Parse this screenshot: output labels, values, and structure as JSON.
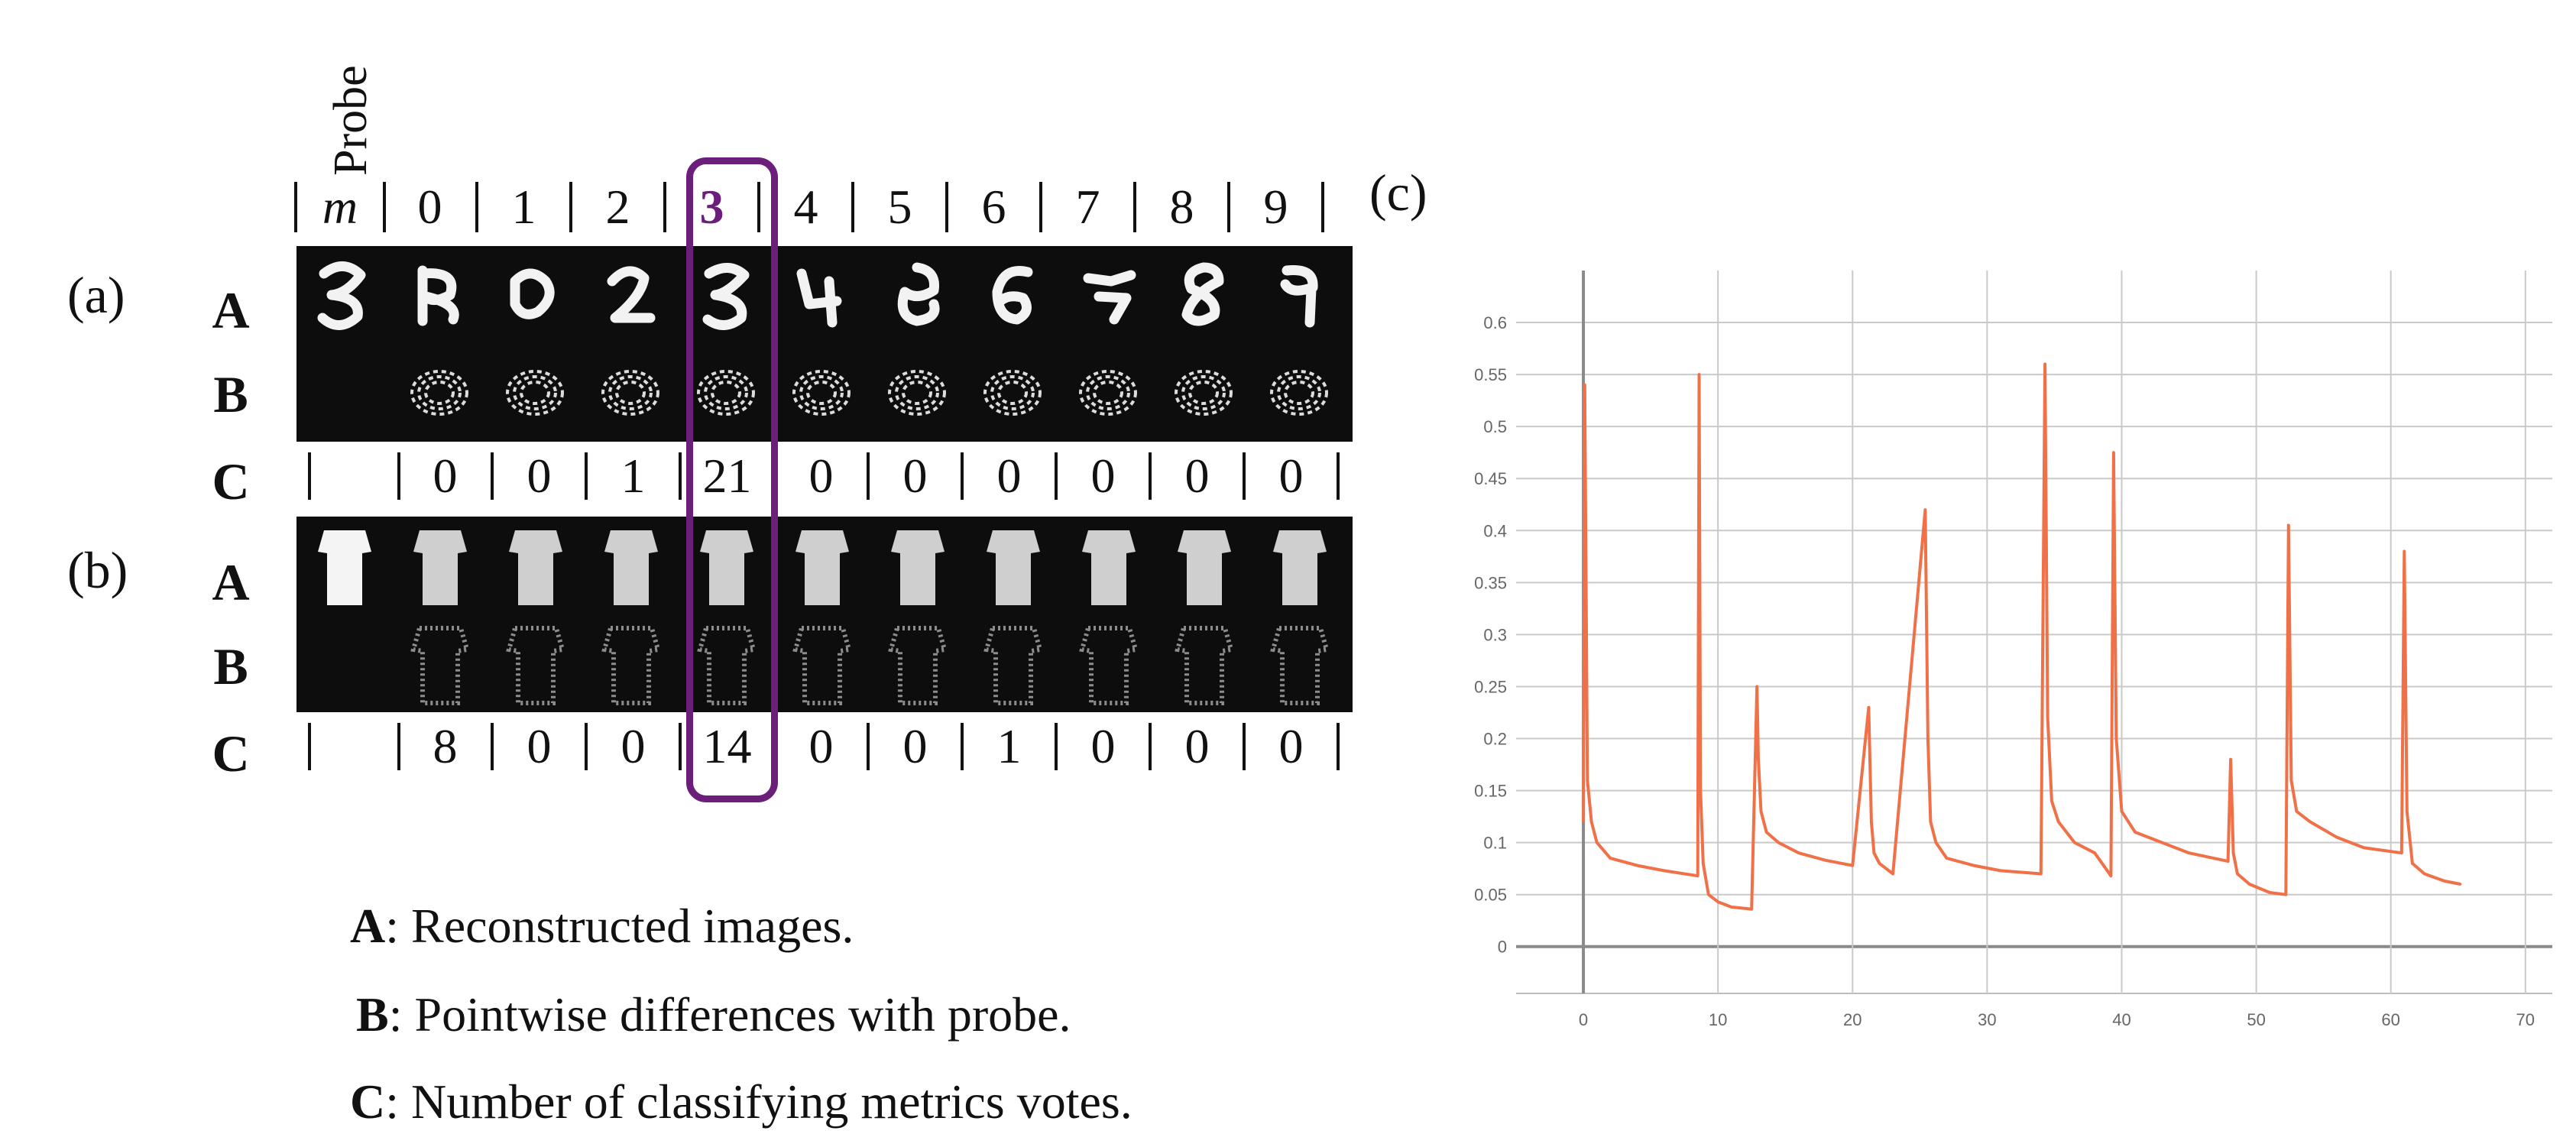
{
  "figure": {
    "probe_label": "Probe",
    "m_label": "m",
    "columns": [
      "0",
      "1",
      "2",
      "3",
      "4",
      "5",
      "6",
      "7",
      "8",
      "9"
    ],
    "highlight_column": "3",
    "highlight_color": "#6b1e7a",
    "panel_a": {
      "label": "(a)",
      "row_a": "A",
      "row_b": "B",
      "row_c": "C",
      "votes": [
        "0",
        "0",
        "1",
        "21",
        "0",
        "0",
        "0",
        "0",
        "0",
        "0"
      ]
    },
    "panel_b": {
      "label": "(b)",
      "row_a": "A",
      "row_b": "B",
      "row_c": "C",
      "votes": [
        "8",
        "0",
        "0",
        "14",
        "0",
        "0",
        "1",
        "0",
        "0",
        "0"
      ]
    },
    "panel_c": {
      "label": "(c)"
    },
    "legend": [
      {
        "key": "A",
        "text": ": Reconstructed images."
      },
      {
        "key": "B",
        "text": ": Pointwise differences with probe."
      },
      {
        "key": "C",
        "text": ": Number of classifying metrics votes."
      }
    ]
  },
  "chart_data": {
    "type": "line",
    "title": "",
    "xlabel": "",
    "ylabel": "",
    "xlim": [
      -5,
      72
    ],
    "ylim": [
      -0.045,
      0.65
    ],
    "x_ticks": [
      0,
      10,
      20,
      30,
      40,
      50,
      60,
      70
    ],
    "y_ticks": [
      0,
      0.05,
      0.1,
      0.15,
      0.2,
      0.25,
      0.3,
      0.35,
      0.4,
      0.45,
      0.5,
      0.55,
      0.6
    ],
    "y_tick_labels": [
      "0",
      "0.05",
      "0.1",
      "0.15",
      "0.2",
      "0.25",
      "0.3",
      "0.35",
      "0.4",
      "0.45",
      "0.5",
      "0.55",
      "0.6"
    ],
    "grid": true,
    "line_color": "#f07048",
    "series": [
      {
        "x": [
          0,
          0.1,
          0.3,
          0.6,
          1,
          2,
          4,
          6,
          8.5,
          8.6,
          8.7,
          8.9,
          9.3,
          10,
          11,
          12.5,
          12.9,
          13.0,
          13.2,
          13.6,
          14.5,
          16,
          18,
          20,
          21.2,
          21.4,
          21.6,
          22,
          23,
          25.4,
          25.6,
          25.8,
          26.2,
          27,
          29,
          31,
          34,
          34.3,
          34.5,
          34.8,
          35.3,
          36.5,
          38,
          39.2,
          39.4,
          39.6,
          40,
          41,
          43,
          45,
          47.9,
          48.1,
          48.3,
          48.6,
          49.5,
          51,
          52.2,
          52.4,
          52.6,
          53,
          54,
          56,
          58,
          60.8,
          61.0,
          61.2,
          61.6,
          62.5,
          64,
          65.2
        ],
        "y": [
          0.12,
          0.54,
          0.16,
          0.12,
          0.1,
          0.085,
          0.078,
          0.073,
          0.068,
          0.55,
          0.15,
          0.08,
          0.05,
          0.043,
          0.038,
          0.036,
          0.25,
          0.18,
          0.13,
          0.11,
          0.1,
          0.09,
          0.083,
          0.078,
          0.23,
          0.12,
          0.09,
          0.08,
          0.07,
          0.42,
          0.2,
          0.12,
          0.1,
          0.085,
          0.078,
          0.073,
          0.07,
          0.56,
          0.22,
          0.14,
          0.12,
          0.1,
          0.09,
          0.068,
          0.475,
          0.2,
          0.13,
          0.11,
          0.1,
          0.09,
          0.082,
          0.18,
          0.09,
          0.07,
          0.06,
          0.052,
          0.05,
          0.405,
          0.16,
          0.13,
          0.12,
          0.105,
          0.095,
          0.09,
          0.38,
          0.13,
          0.08,
          0.07,
          0.063,
          0.06
        ]
      }
    ]
  }
}
